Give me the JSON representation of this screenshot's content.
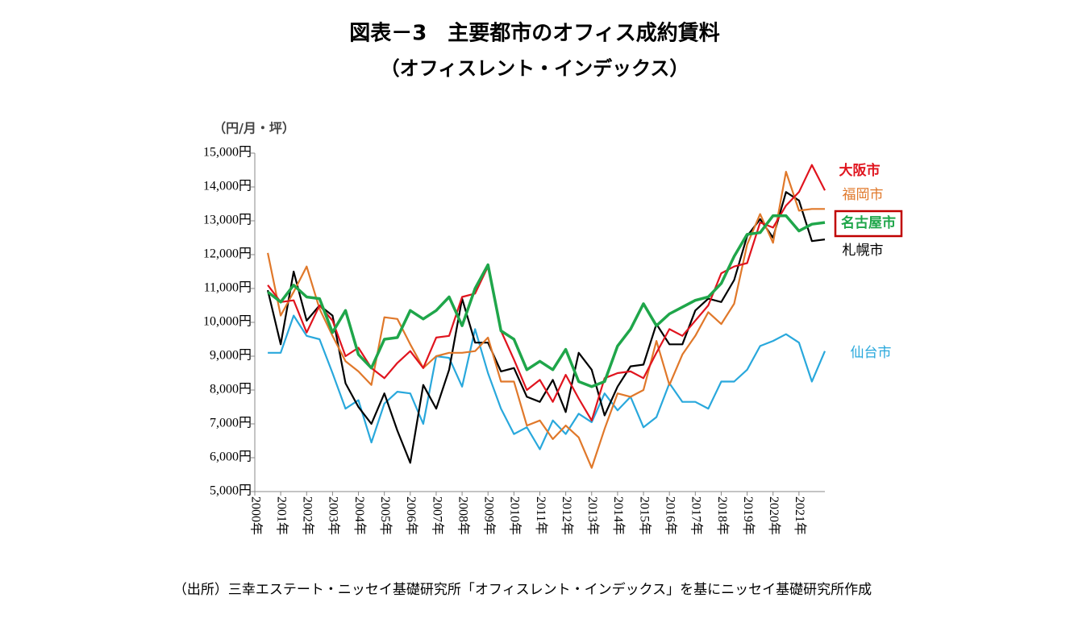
{
  "chart_data": {
    "type": "line",
    "title": "図表－3　主要都市のオフィス成約賃料",
    "subtitle": "（オフィスレント・インデックス）",
    "y_label": "（円/月・坪）",
    "source": "（出所）三幸エステート・ニッセイ基礎研究所「オフィスレント・インデックス」を基にニッセイ基礎研究所作成",
    "x": [
      2000.5,
      2001,
      2001.5,
      2002,
      2002.5,
      2003,
      2003.5,
      2004,
      2004.5,
      2005,
      2005.5,
      2006,
      2006.5,
      2007,
      2007.5,
      2008,
      2008.5,
      2009,
      2009.5,
      2010,
      2010.5,
      2011,
      2011.5,
      2012,
      2012.5,
      2013,
      2013.5,
      2014,
      2014.5,
      2015,
      2015.5,
      2016,
      2016.5,
      2017,
      2017.5,
      2018,
      2018.5,
      2019,
      2019.5,
      2020,
      2020.5,
      2021,
      2021.5,
      2022
    ],
    "xlim": [
      2000,
      2022
    ],
    "xticks": [
      {
        "value": 2000,
        "label": "2000年"
      },
      {
        "value": 2001,
        "label": "2001年"
      },
      {
        "value": 2002,
        "label": "2002年"
      },
      {
        "value": 2003,
        "label": "2003年"
      },
      {
        "value": 2004,
        "label": "2004年"
      },
      {
        "value": 2005,
        "label": "2005年"
      },
      {
        "value": 2006,
        "label": "2006年"
      },
      {
        "value": 2007,
        "label": "2007年"
      },
      {
        "value": 2008,
        "label": "2008年"
      },
      {
        "value": 2009,
        "label": "2009年"
      },
      {
        "value": 2010,
        "label": "2010年"
      },
      {
        "value": 2011,
        "label": "2011年"
      },
      {
        "value": 2012,
        "label": "2012年"
      },
      {
        "value": 2013,
        "label": "2013年"
      },
      {
        "value": 2014,
        "label": "2014年"
      },
      {
        "value": 2015,
        "label": "2015年"
      },
      {
        "value": 2016,
        "label": "2016年"
      },
      {
        "value": 2017,
        "label": "2017年"
      },
      {
        "value": 2018,
        "label": "2018年"
      },
      {
        "value": 2019,
        "label": "2019年"
      },
      {
        "value": 2020,
        "label": "2020年"
      },
      {
        "value": 2021,
        "label": "2021年"
      }
    ],
    "ylim": [
      5000,
      15000
    ],
    "yticks": [
      {
        "value": 5000,
        "label": "5,000円"
      },
      {
        "value": 6000,
        "label": "6,000円"
      },
      {
        "value": 7000,
        "label": "7,000円"
      },
      {
        "value": 8000,
        "label": "8,000円"
      },
      {
        "value": 9000,
        "label": "9,000円"
      },
      {
        "value": 10000,
        "label": "10,000円"
      },
      {
        "value": 11000,
        "label": "11,000円"
      },
      {
        "value": 12000,
        "label": "12,000円"
      },
      {
        "value": 13000,
        "label": "13,000円"
      },
      {
        "value": 14000,
        "label": "14,000円"
      },
      {
        "value": 15000,
        "label": "15,000円"
      }
    ],
    "series": [
      {
        "name": "仙台市",
        "color": "#29a8dc",
        "values": [
          9100,
          9100,
          10200,
          9600,
          9500,
          8500,
          7450,
          7700,
          6450,
          7600,
          7950,
          7900,
          7000,
          9000,
          8950,
          8100,
          9800,
          8500,
          7450,
          6700,
          6900,
          6250,
          7100,
          6700,
          7300,
          7050,
          7900,
          7400,
          7800,
          6900,
          7200,
          8200,
          7650,
          7650,
          7450,
          8250,
          8250,
          8600,
          9300,
          9450,
          9650,
          9400,
          8250,
          9150
        ]
      },
      {
        "name": "札幌市",
        "color": "#000000",
        "values": [
          10950,
          9350,
          11500,
          10050,
          10500,
          10200,
          8200,
          7500,
          7000,
          7900,
          6800,
          5850,
          8150,
          7450,
          8600,
          10700,
          9400,
          9400,
          8550,
          8650,
          7800,
          7650,
          8300,
          7350,
          9100,
          8600,
          7250,
          8100,
          8700,
          8750,
          9950,
          9350,
          9350,
          10350,
          10700,
          10600,
          11250,
          12550,
          13050,
          12500,
          13850,
          13600,
          12400,
          12450
        ]
      },
      {
        "name": "福岡市",
        "color": "#e0782a",
        "values": [
          12050,
          10200,
          10900,
          11650,
          10400,
          9600,
          8850,
          8550,
          8150,
          10150,
          10100,
          9350,
          8650,
          9000,
          9100,
          9100,
          9150,
          9550,
          8250,
          8250,
          6950,
          7100,
          6550,
          6950,
          6600,
          5700,
          6850,
          7900,
          7800,
          8000,
          9450,
          8150,
          9050,
          9600,
          10300,
          9950,
          10550,
          12300,
          13200,
          12350,
          14450,
          13300,
          13350,
          13350
        ]
      },
      {
        "name": "大阪市",
        "color": "#e0141e",
        "values": [
          11100,
          10600,
          10650,
          9700,
          10500,
          10050,
          9000,
          9250,
          8650,
          8350,
          8800,
          9150,
          8650,
          9550,
          9600,
          10750,
          10850,
          11650,
          9750,
          8900,
          8000,
          8300,
          7650,
          8450,
          7750,
          7100,
          8350,
          8500,
          8550,
          8350,
          9100,
          9800,
          9600,
          10050,
          10500,
          11450,
          11650,
          11750,
          12950,
          12800,
          13450,
          13850,
          14650,
          13900
        ]
      },
      {
        "name": "名古屋市",
        "color": "#1fa64a",
        "values": [
          10900,
          10600,
          11100,
          10750,
          10700,
          9700,
          10350,
          9050,
          8650,
          9500,
          9550,
          10350,
          10100,
          10350,
          10750,
          9900,
          11000,
          11700,
          9750,
          9500,
          8600,
          8850,
          8600,
          9200,
          8250,
          8100,
          8250,
          9300,
          9800,
          10550,
          9900,
          10250,
          10450,
          10650,
          10750,
          11150,
          11950,
          12600,
          12650,
          13150,
          13150,
          12700,
          12900,
          12950
        ]
      }
    ]
  }
}
